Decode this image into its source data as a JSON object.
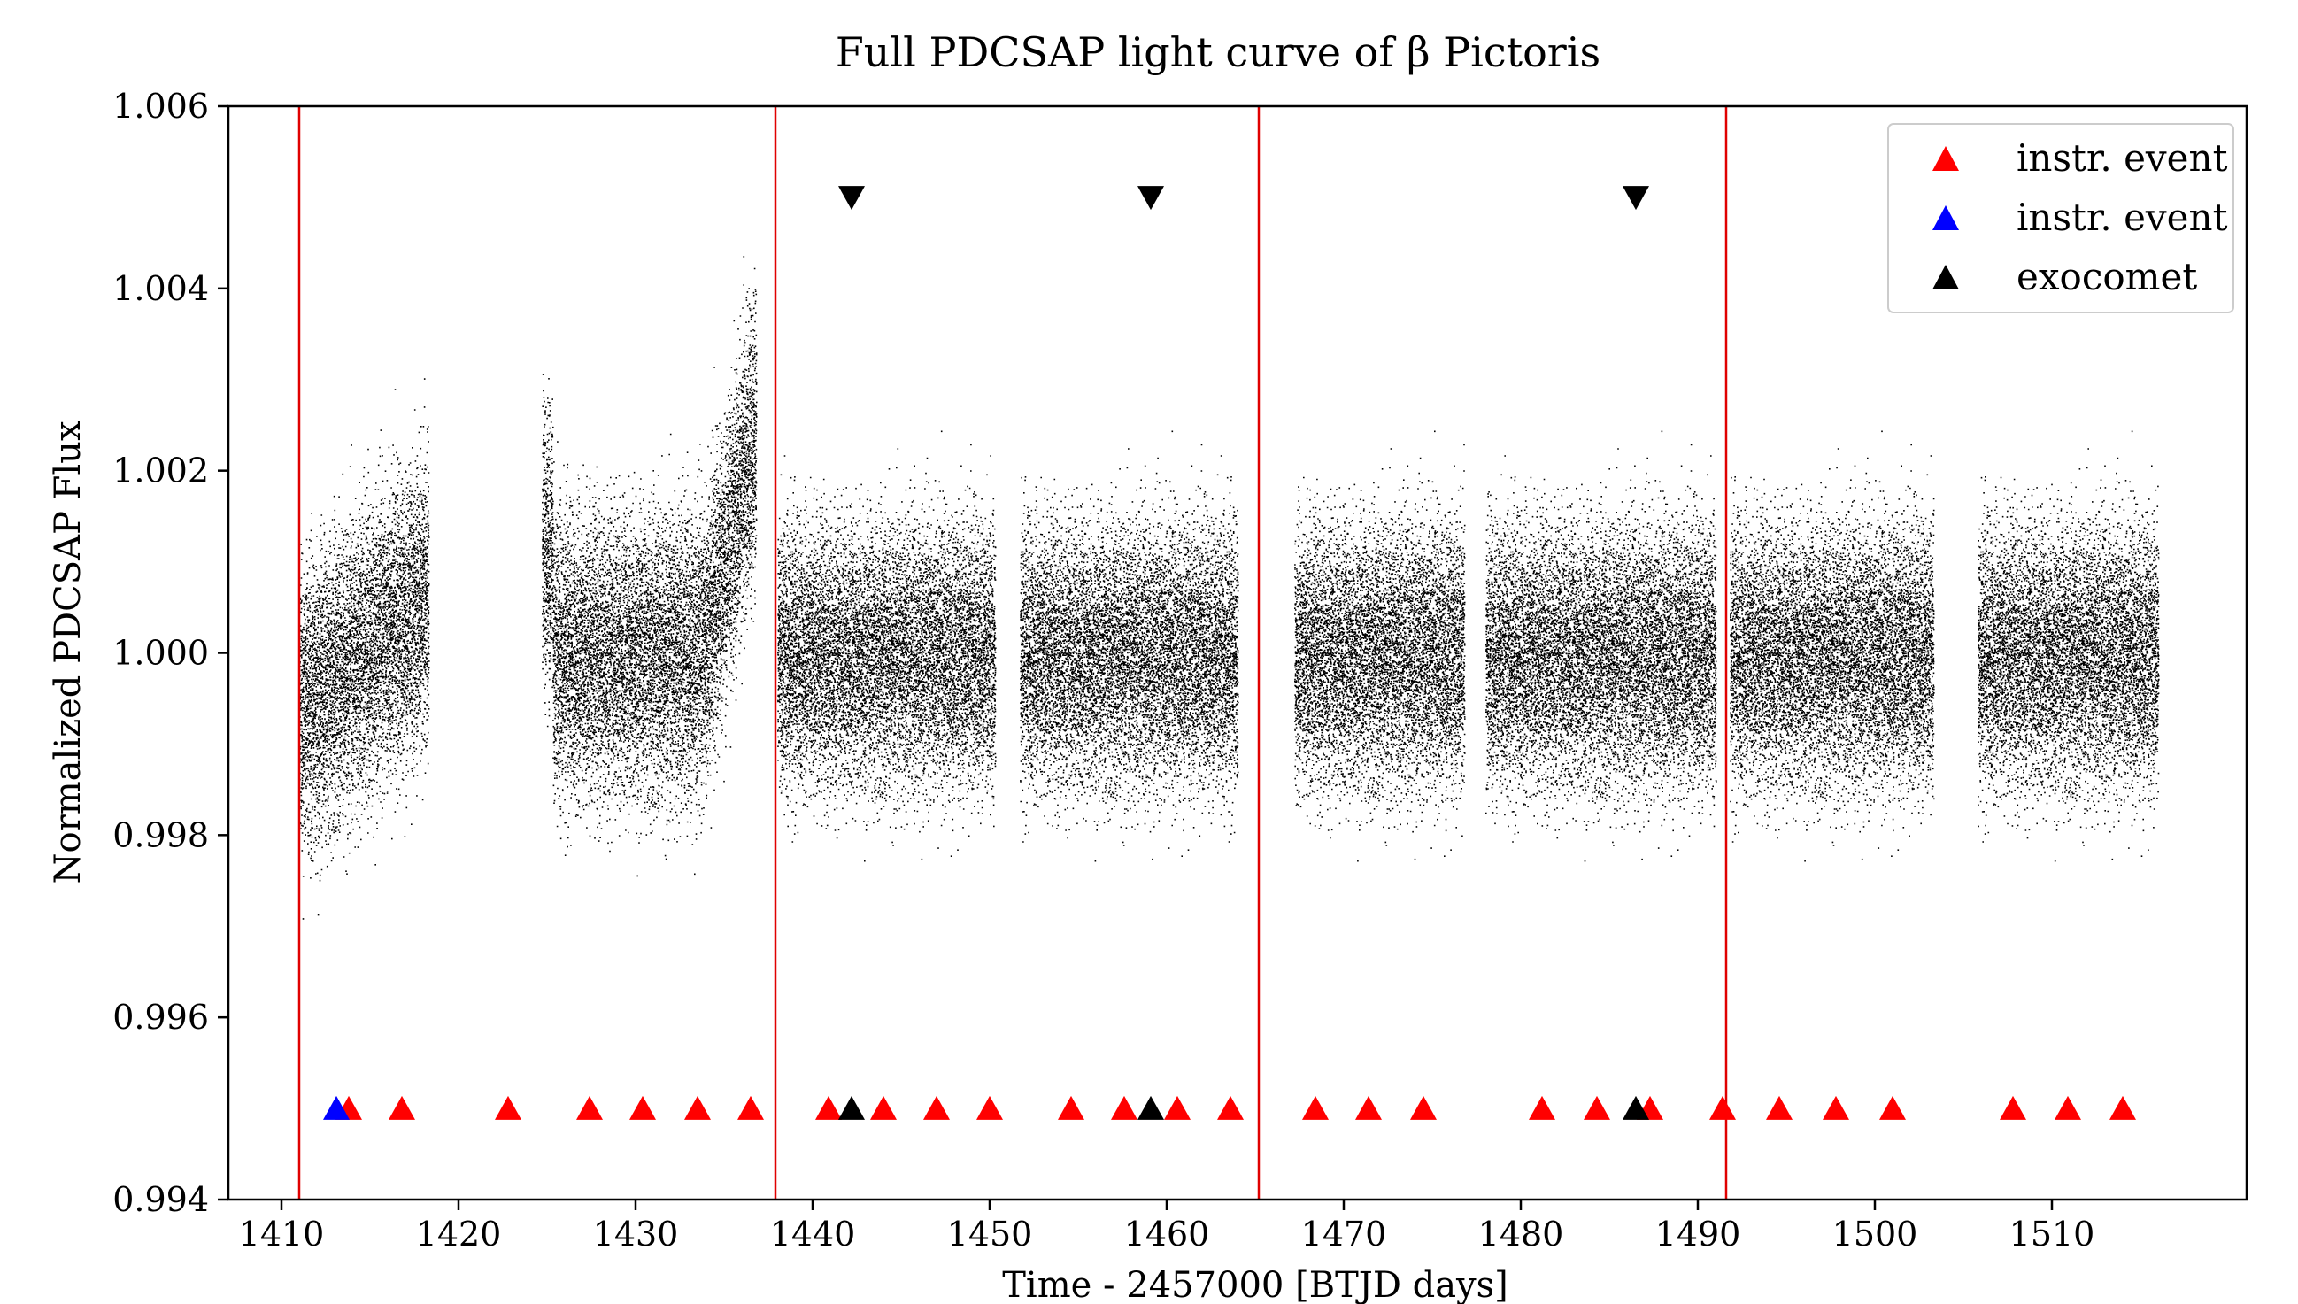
{
  "chart_data": {
    "type": "scatter",
    "title": "Full PDCSAP light curve of β Pictoris",
    "xlabel": "Time - 2457000 [BTJD days]",
    "ylabel": "Normalized PDCSAP Flux",
    "xlim": [
      1407,
      1521
    ],
    "ylim": [
      0.994,
      1.006
    ],
    "xticks": [
      1410,
      1420,
      1430,
      1440,
      1450,
      1460,
      1470,
      1480,
      1490,
      1500,
      1510
    ],
    "xtick_labels": [
      "1410",
      "1420",
      "1430",
      "1440",
      "1450",
      "1460",
      "1470",
      "1480",
      "1490",
      "1500",
      "1510"
    ],
    "yticks": [
      0.994,
      0.996,
      0.998,
      1.0,
      1.002,
      1.004,
      1.006
    ],
    "ytick_labels": [
      "0.994",
      "0.996",
      "0.998",
      "1.000",
      "1.002",
      "1.004",
      "1.006"
    ],
    "grid": false,
    "legend_position": "top-right",
    "legend": [
      {
        "label": "instr. event",
        "color": "#ff0000",
        "marker": "triangle-up"
      },
      {
        "label": "instr. event",
        "color": "#0000ff",
        "marker": "triangle-up"
      },
      {
        "label": "exocomet",
        "color": "#000000",
        "marker": "triangle-up"
      }
    ],
    "sector_boundaries": [
      1411.0,
      1437.9,
      1465.2,
      1491.6
    ],
    "boundary_color": "#e00000",
    "light_curve_segments": [
      {
        "x_range": [
          1411.0,
          1418.3
        ],
        "mean_flux": 1.0,
        "scatter": 0.0015,
        "trend": "rising"
      },
      {
        "x_range": [
          1424.7,
          1436.8
        ],
        "mean_flux": 1.0,
        "scatter": 0.0015,
        "trend": "rising-at-end"
      },
      {
        "x_range": [
          1438.0,
          1450.3
        ],
        "mean_flux": 1.0,
        "scatter": 0.0014,
        "trend": "flat"
      },
      {
        "x_range": [
          1451.7,
          1464.0
        ],
        "mean_flux": 1.0,
        "scatter": 0.0014,
        "trend": "flat"
      },
      {
        "x_range": [
          1467.2,
          1476.8
        ],
        "mean_flux": 1.0,
        "scatter": 0.0014,
        "trend": "flat"
      },
      {
        "x_range": [
          1478.0,
          1491.0
        ],
        "mean_flux": 1.0,
        "scatter": 0.0014,
        "trend": "flat"
      },
      {
        "x_range": [
          1491.8,
          1503.3
        ],
        "mean_flux": 1.0,
        "scatter": 0.0014,
        "trend": "flat"
      },
      {
        "x_range": [
          1505.8,
          1516.0
        ],
        "mean_flux": 1.0,
        "scatter": 0.0014,
        "trend": "flat"
      }
    ],
    "instr_events_red": [
      1413.8,
      1416.8,
      1422.8,
      1427.4,
      1430.4,
      1433.5,
      1436.5,
      1440.9,
      1444.0,
      1447.0,
      1450.0,
      1454.6,
      1457.6,
      1460.6,
      1463.6,
      1468.4,
      1471.4,
      1474.5,
      1481.2,
      1484.3,
      1487.3,
      1491.4,
      1494.6,
      1497.8,
      1501.0,
      1507.8,
      1510.9,
      1514.0
    ],
    "instr_events_blue": [
      1413.1
    ],
    "exocomet_events": [
      1442.2,
      1459.1,
      1486.5
    ],
    "event_marker_flux": 0.995,
    "exocomet_marker_top_flux": 1.005
  }
}
